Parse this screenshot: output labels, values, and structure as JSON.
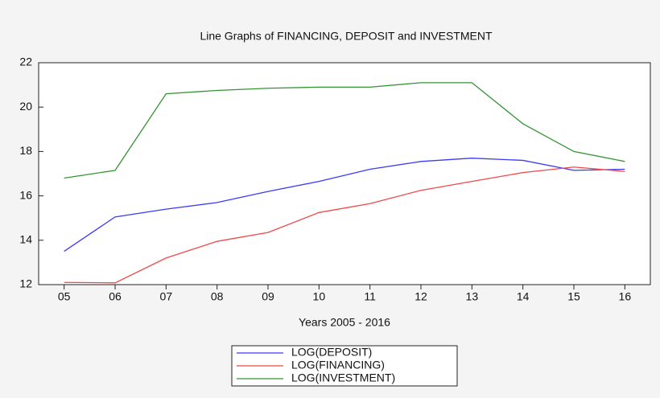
{
  "chart_data": {
    "type": "line",
    "title": "Line Graphs of FINANCING, DEPOSIT and INVESTMENT",
    "x_label": "Years 2005 - 2016",
    "categories": [
      "05",
      "06",
      "07",
      "08",
      "09",
      "10",
      "11",
      "12",
      "13",
      "14",
      "15",
      "16"
    ],
    "series": [
      {
        "name": "LOG(DEPOSIT)",
        "color": "#3b3bf5",
        "values": [
          13.5,
          15.05,
          15.4,
          15.7,
          16.2,
          16.65,
          17.2,
          17.55,
          17.7,
          17.6,
          17.15,
          17.2
        ]
      },
      {
        "name": "LOG(FINANCING)",
        "color": "#f04848",
        "values": [
          12.1,
          12.08,
          13.2,
          13.95,
          14.35,
          15.25,
          15.65,
          16.25,
          16.65,
          17.05,
          17.3,
          17.1
        ]
      },
      {
        "name": "LOG(INVESTMENT)",
        "color": "#349434",
        "values": [
          16.8,
          17.15,
          20.6,
          20.75,
          20.85,
          20.9,
          20.9,
          21.1,
          21.1,
          19.25,
          18.0,
          17.55
        ]
      }
    ],
    "ylim": [
      12,
      22
    ],
    "yticks": [
      12,
      14,
      16,
      18,
      20,
      22
    ],
    "legend": "bottom"
  }
}
